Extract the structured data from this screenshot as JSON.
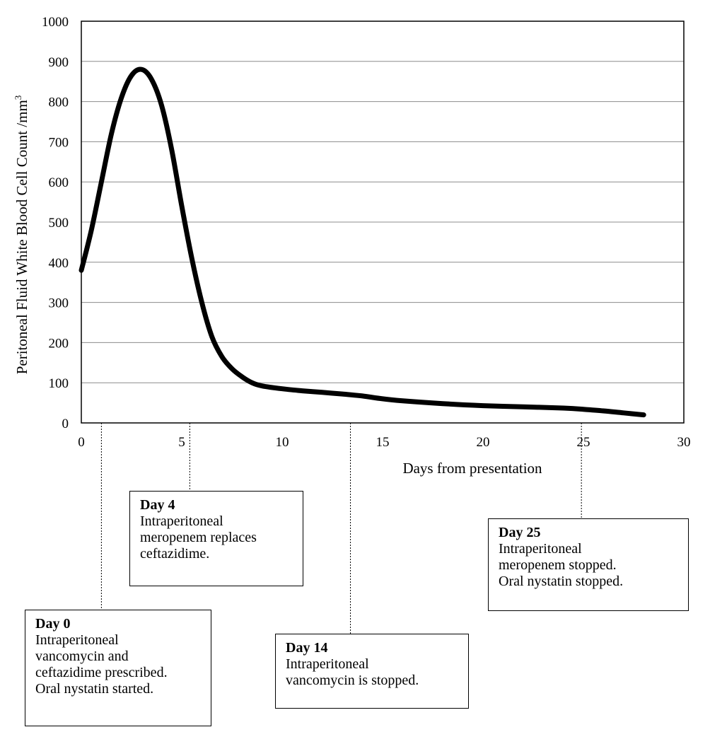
{
  "chart_data": {
    "type": "line",
    "xlabel": "Days from presentation",
    "ylabel": "Peritoneal Fluid White Blood Cell Count /mm",
    "ylabel_superscript": "3",
    "xlim": [
      0,
      30
    ],
    "ylim": [
      0,
      1000
    ],
    "x_ticks": [
      "0",
      "5",
      "10",
      "15",
      "20",
      "25",
      "30"
    ],
    "y_ticks": [
      "0",
      "100",
      "200",
      "300",
      "400",
      "500",
      "600",
      "700",
      "800",
      "900",
      "1000"
    ],
    "grid": "horizontal",
    "line_color": "#000000",
    "series": [
      {
        "x": [
          0,
          0.5,
          1,
          1.5,
          2,
          2.5,
          3,
          3.5,
          4,
          4.5,
          5,
          5.5,
          6,
          6.5,
          7,
          7.5,
          8,
          8.5,
          9,
          10,
          11,
          12,
          13,
          14,
          15,
          16,
          18,
          20,
          22,
          24,
          25,
          26,
          27,
          28
        ],
        "y": [
          380,
          480,
          600,
          720,
          810,
          865,
          880,
          855,
          790,
          680,
          540,
          410,
          300,
          215,
          165,
          135,
          115,
          100,
          92,
          85,
          80,
          76,
          72,
          67,
          60,
          55,
          48,
          43,
          40,
          37,
          34,
          30,
          25,
          20
        ]
      }
    ],
    "annotations": [
      {
        "day": 0,
        "title": "Day 0",
        "lines": [
          "Intraperitoneal",
          "vancomycin and",
          "ceftazidime prescribed.",
          "Oral nystatin started."
        ]
      },
      {
        "day": 4,
        "title": "Day 4",
        "lines": [
          "Intraperitoneal",
          "meropenem replaces",
          "ceftazidime."
        ]
      },
      {
        "day": 14,
        "title": "Day 14",
        "lines": [
          "Intraperitoneal",
          "vancomycin is stopped."
        ]
      },
      {
        "day": 25,
        "title": "Day 25",
        "lines": [
          "Intraperitoneal",
          "meropenem stopped.",
          "Oral nystatin stopped."
        ]
      }
    ]
  }
}
